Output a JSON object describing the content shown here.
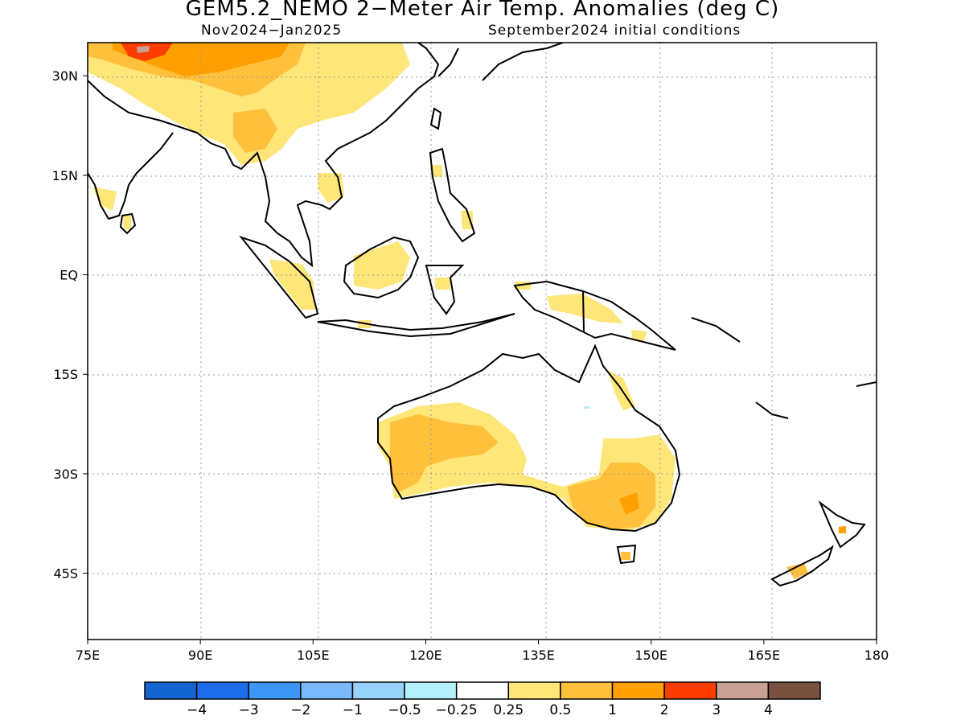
{
  "title": "GEM5.2_NEMO 2−Meter Air Temp. Anomalies (deg C)",
  "subtitle_left": "Nov2024−Jan2025",
  "subtitle_right": "September2024 initial conditions",
  "map": {
    "lon_range": [
      75,
      180
    ],
    "lat_range": [
      -55,
      35
    ],
    "grid": true,
    "lon_ticks": [
      {
        "value": 75,
        "label": "75E"
      },
      {
        "value": 90,
        "label": "90E"
      },
      {
        "value": 105,
        "label": "105E"
      },
      {
        "value": 120,
        "label": "120E"
      },
      {
        "value": 135,
        "label": "135E"
      },
      {
        "value": 150,
        "label": "150E"
      },
      {
        "value": 165,
        "label": "165E"
      },
      {
        "value": 180,
        "label": "180"
      }
    ],
    "lat_ticks": [
      {
        "value": 30,
        "label": "30N"
      },
      {
        "value": 15,
        "label": "15N"
      },
      {
        "value": 0,
        "label": "EQ"
      },
      {
        "value": -15,
        "label": "15S"
      },
      {
        "value": -30,
        "label": "30S"
      },
      {
        "value": -45,
        "label": "45S"
      }
    ]
  },
  "colorbar": {
    "colors": [
      "#1464d2",
      "#1e6eeb",
      "#3c96f5",
      "#78b9fa",
      "#96d2fa",
      "#b4f0fa",
      "#ffffff",
      "#ffe678",
      "#ffc03c",
      "#ffa000",
      "#ff3c00",
      "#c8a096",
      "#7a5040"
    ],
    "labels": [
      "−4",
      "−3",
      "−2",
      "−1",
      "−0.5",
      "−0.25",
      "0.25",
      "0.5",
      "1",
      "2",
      "3",
      "4"
    ]
  },
  "colors": {
    "anom_0_25_0_5": "#ffe678",
    "anom_0_5_1": "#ffc03c",
    "anom_1_2": "#ffa000",
    "anom_2_3": "#ff3c00",
    "anom_3_4": "#c8a096",
    "anom_neg_0_25_0_5": "#b4f0fa",
    "coast": "#000000"
  }
}
